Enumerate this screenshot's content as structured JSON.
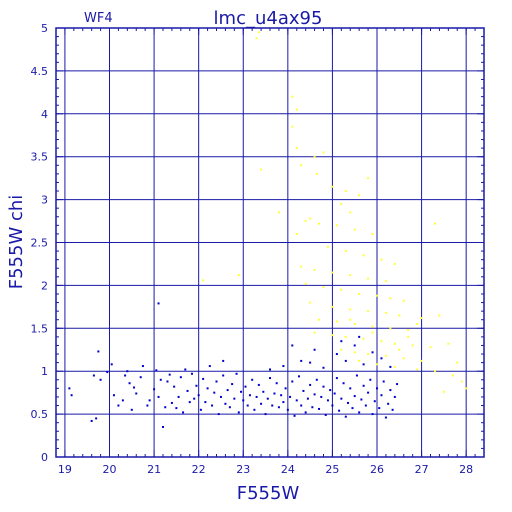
{
  "chart_data": {
    "type": "scatter",
    "title": "lmc_u4ax95",
    "corner_label": "WF4",
    "xlabel": "F555W",
    "ylabel": "F555W  chi",
    "xlim": [
      18.8,
      28.4
    ],
    "ylim": [
      0,
      5
    ],
    "xticks": [
      "19",
      "20",
      "21",
      "22",
      "23",
      "24",
      "25",
      "26",
      "27",
      "28"
    ],
    "xtick_values": [
      19,
      20,
      21,
      22,
      23,
      24,
      25,
      26,
      27,
      28
    ],
    "yticks": [
      "0",
      "0.5",
      "1",
      "1.5",
      "2",
      "2.5",
      "3",
      "3.5",
      "4",
      "4.5",
      "5"
    ],
    "ytick_values": [
      0,
      0.5,
      1,
      1.5,
      2,
      2.5,
      3,
      3.5,
      4,
      4.5,
      5
    ],
    "grid": true,
    "colors": {
      "axes": "#1a1aa8",
      "grid": "#1a1aa8",
      "good": "#0000cc",
      "bad": "#ffff33"
    },
    "series": [
      {
        "color": "#0000cc",
        "points": [
          [
            19.1,
            0.8
          ],
          [
            19.15,
            0.72
          ],
          [
            19.6,
            0.42
          ],
          [
            19.65,
            0.95
          ],
          [
            19.7,
            0.45
          ],
          [
            19.75,
            1.23
          ],
          [
            19.8,
            0.9
          ],
          [
            19.95,
            0.99
          ],
          [
            20.05,
            1.08
          ],
          [
            20.1,
            0.72
          ],
          [
            20.2,
            0.6
          ],
          [
            20.3,
            0.66
          ],
          [
            20.35,
            0.95
          ],
          [
            20.4,
            1.0
          ],
          [
            20.45,
            0.86
          ],
          [
            20.5,
            0.55
          ],
          [
            20.55,
            0.81
          ],
          [
            20.6,
            0.74
          ],
          [
            20.7,
            0.93
          ],
          [
            20.75,
            1.06
          ],
          [
            20.85,
            0.6
          ],
          [
            20.9,
            0.66
          ],
          [
            21.0,
            0.79
          ],
          [
            21.05,
            1.01
          ],
          [
            21.1,
            0.7
          ],
          [
            21.15,
            0.9
          ],
          [
            21.2,
            0.35
          ],
          [
            21.25,
            0.58
          ],
          [
            21.3,
            0.88
          ],
          [
            21.35,
            0.96
          ],
          [
            21.4,
            0.63
          ],
          [
            21.45,
            0.82
          ],
          [
            21.5,
            0.57
          ],
          [
            21.55,
            0.7
          ],
          [
            21.6,
            0.93
          ],
          [
            21.65,
            0.52
          ],
          [
            21.7,
            1.02
          ],
          [
            21.75,
            0.77
          ],
          [
            21.8,
            0.64
          ],
          [
            21.85,
            0.97
          ],
          [
            21.9,
            0.68
          ],
          [
            21.95,
            0.83
          ],
          [
            22.0,
            0.72
          ],
          [
            22.05,
            0.55
          ],
          [
            22.1,
            0.91
          ],
          [
            22.15,
            0.64
          ],
          [
            22.2,
            0.8
          ],
          [
            22.25,
            1.06
          ],
          [
            22.3,
            0.6
          ],
          [
            22.35,
            0.75
          ],
          [
            22.4,
            0.88
          ],
          [
            22.45,
            0.5
          ],
          [
            22.5,
            0.7
          ],
          [
            22.55,
            0.95
          ],
          [
            22.6,
            0.62
          ],
          [
            22.65,
            0.78
          ],
          [
            22.7,
            0.58
          ],
          [
            22.75,
            0.85
          ],
          [
            22.8,
            0.68
          ],
          [
            22.85,
            0.97
          ],
          [
            22.9,
            0.52
          ],
          [
            22.95,
            0.76
          ],
          [
            23.0,
            0.66
          ],
          [
            23.05,
            0.82
          ],
          [
            23.1,
            0.6
          ],
          [
            23.15,
            0.72
          ],
          [
            23.2,
            0.9
          ],
          [
            23.25,
            0.55
          ],
          [
            23.3,
            0.7
          ],
          [
            23.35,
            0.84
          ],
          [
            23.4,
            0.62
          ],
          [
            23.45,
            0.76
          ],
          [
            23.5,
            0.5
          ],
          [
            23.55,
            0.68
          ],
          [
            23.6,
            0.92
          ],
          [
            23.65,
            0.6
          ],
          [
            23.7,
            0.74
          ],
          [
            23.75,
            0.86
          ],
          [
            23.8,
            0.58
          ],
          [
            23.85,
            0.72
          ],
          [
            23.9,
            0.64
          ],
          [
            23.95,
            0.8
          ],
          [
            24.0,
            0.55
          ],
          [
            24.05,
            0.7
          ],
          [
            24.1,
            0.88
          ],
          [
            24.15,
            0.48
          ],
          [
            24.2,
            0.66
          ],
          [
            24.25,
            0.94
          ],
          [
            24.3,
            0.6
          ],
          [
            24.35,
            0.77
          ],
          [
            24.4,
            0.52
          ],
          [
            24.45,
            0.68
          ],
          [
            24.5,
            0.84
          ],
          [
            24.55,
            0.58
          ],
          [
            24.6,
            0.73
          ],
          [
            24.65,
            0.9
          ],
          [
            24.7,
            0.56
          ],
          [
            24.75,
            0.7
          ],
          [
            24.8,
            0.82
          ],
          [
            24.85,
            0.49
          ],
          [
            24.9,
            0.66
          ],
          [
            24.95,
            0.78
          ],
          [
            25.0,
            0.6
          ],
          [
            25.05,
            0.74
          ],
          [
            25.1,
            0.92
          ],
          [
            25.15,
            0.54
          ],
          [
            25.2,
            0.68
          ],
          [
            25.25,
            0.86
          ],
          [
            25.3,
            0.47
          ],
          [
            25.35,
            0.63
          ],
          [
            25.4,
            0.8
          ],
          [
            25.45,
            0.57
          ],
          [
            25.5,
            0.71
          ],
          [
            25.55,
            0.95
          ],
          [
            25.6,
            0.52
          ],
          [
            25.65,
            0.67
          ],
          [
            25.7,
            0.83
          ],
          [
            25.75,
            0.6
          ],
          [
            25.8,
            0.75
          ],
          [
            25.85,
            0.9
          ],
          [
            25.9,
            0.5
          ],
          [
            25.95,
            0.65
          ],
          [
            26.0,
            0.8
          ],
          [
            26.05,
            0.57
          ],
          [
            26.1,
            0.72
          ],
          [
            26.15,
            0.88
          ],
          [
            26.2,
            0.46
          ],
          [
            26.25,
            0.62
          ],
          [
            26.3,
            0.78
          ],
          [
            26.35,
            0.55
          ],
          [
            26.4,
            0.7
          ],
          [
            26.45,
            0.85
          ],
          [
            24.5,
            1.1
          ],
          [
            24.8,
            1.04
          ],
          [
            25.1,
            1.2
          ],
          [
            25.3,
            1.12
          ],
          [
            25.5,
            1.3
          ],
          [
            25.7,
            1.08
          ],
          [
            25.9,
            1.22
          ],
          [
            26.1,
            1.15
          ],
          [
            26.3,
            1.05
          ],
          [
            25.6,
            1.4
          ],
          [
            25.2,
            1.35
          ],
          [
            24.6,
            1.25
          ],
          [
            24.3,
            1.12
          ],
          [
            23.6,
            1.02
          ],
          [
            23.9,
            1.06
          ],
          [
            24.1,
            1.3
          ],
          [
            21.1,
            1.79
          ],
          [
            22.55,
            1.12
          ]
        ]
      },
      {
        "color": "#ffff33",
        "points": [
          [
            23.3,
            4.88
          ],
          [
            23.35,
            4.95
          ],
          [
            24.1,
            4.2
          ],
          [
            24.2,
            4.05
          ],
          [
            24.1,
            3.85
          ],
          [
            24.3,
            3.4
          ],
          [
            24.2,
            3.6
          ],
          [
            24.6,
            3.5
          ],
          [
            24.8,
            3.55
          ],
          [
            24.65,
            3.3
          ],
          [
            23.4,
            3.35
          ],
          [
            25.0,
            3.15
          ],
          [
            25.3,
            3.1
          ],
          [
            25.6,
            3.05
          ],
          [
            25.8,
            3.25
          ],
          [
            25.2,
            2.95
          ],
          [
            25.4,
            2.85
          ],
          [
            23.8,
            2.85
          ],
          [
            24.5,
            2.78
          ],
          [
            24.7,
            2.72
          ],
          [
            24.4,
            2.75
          ],
          [
            25.1,
            2.7
          ],
          [
            25.5,
            2.65
          ],
          [
            25.9,
            2.6
          ],
          [
            27.3,
            2.72
          ],
          [
            24.2,
            2.6
          ],
          [
            24.9,
            2.45
          ],
          [
            25.3,
            2.4
          ],
          [
            25.7,
            2.35
          ],
          [
            26.1,
            2.3
          ],
          [
            26.4,
            2.25
          ],
          [
            24.3,
            2.22
          ],
          [
            24.6,
            2.18
          ],
          [
            25.0,
            2.15
          ],
          [
            25.4,
            2.12
          ],
          [
            25.8,
            2.08
          ],
          [
            26.2,
            2.05
          ],
          [
            22.9,
            2.12
          ],
          [
            22.1,
            2.06
          ],
          [
            24.4,
            2.02
          ],
          [
            24.8,
            1.98
          ],
          [
            25.2,
            1.95
          ],
          [
            25.6,
            1.9
          ],
          [
            26.0,
            1.88
          ],
          [
            26.3,
            1.85
          ],
          [
            26.6,
            1.82
          ],
          [
            24.5,
            1.8
          ],
          [
            25.0,
            1.75
          ],
          [
            25.4,
            1.72
          ],
          [
            25.8,
            1.7
          ],
          [
            26.2,
            1.68
          ],
          [
            26.5,
            1.65
          ],
          [
            27.0,
            1.62
          ],
          [
            27.4,
            1.65
          ],
          [
            24.7,
            1.6
          ],
          [
            25.1,
            1.58
          ],
          [
            25.5,
            1.55
          ],
          [
            25.9,
            1.52
          ],
          [
            26.3,
            1.5
          ],
          [
            26.7,
            1.48
          ],
          [
            24.6,
            1.45
          ],
          [
            25.0,
            1.42
          ],
          [
            25.3,
            1.4
          ],
          [
            25.7,
            1.38
          ],
          [
            26.1,
            1.35
          ],
          [
            26.4,
            1.32
          ],
          [
            26.8,
            1.3
          ],
          [
            27.2,
            1.28
          ],
          [
            27.6,
            1.32
          ],
          [
            25.2,
            1.25
          ],
          [
            25.5,
            1.22
          ],
          [
            25.8,
            1.2
          ],
          [
            26.2,
            1.18
          ],
          [
            26.6,
            1.15
          ],
          [
            27.0,
            1.12
          ],
          [
            27.8,
            1.1
          ],
          [
            25.6,
            1.12
          ],
          [
            26.0,
            1.08
          ],
          [
            26.4,
            1.05
          ],
          [
            26.9,
            1.02
          ],
          [
            27.3,
            1.0
          ],
          [
            27.7,
            0.95
          ],
          [
            27.9,
            0.88
          ],
          [
            28.0,
            0.8
          ],
          [
            27.5,
            0.76
          ],
          [
            26.5,
            1.25
          ],
          [
            26.7,
            1.4
          ],
          [
            25.9,
            1.45
          ],
          [
            25.4,
            1.6
          ],
          [
            26.9,
            1.55
          ]
        ]
      }
    ]
  }
}
